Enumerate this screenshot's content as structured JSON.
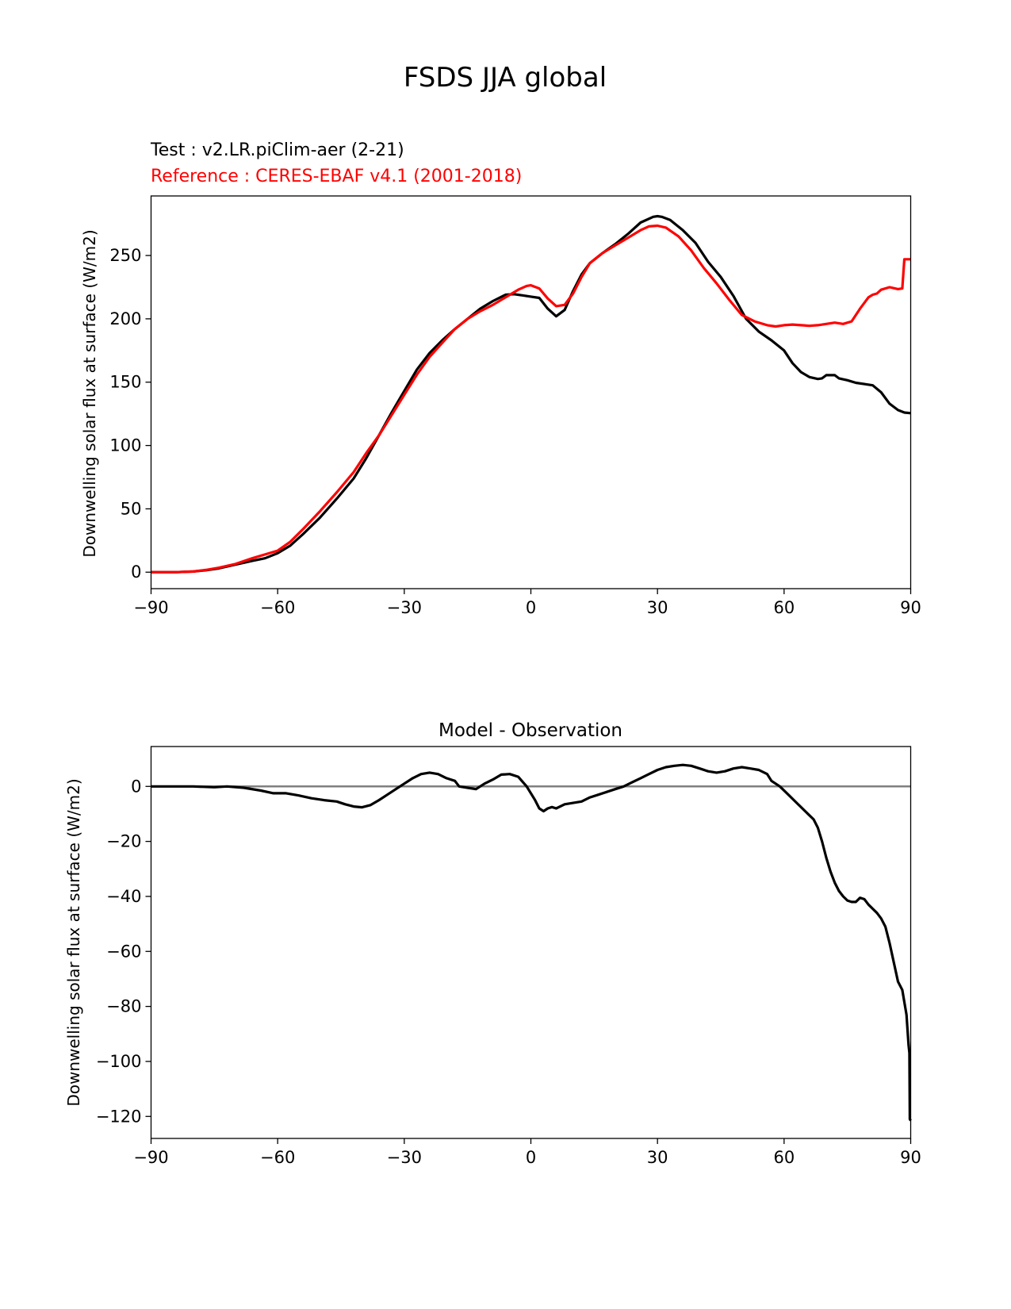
{
  "figure": {
    "suptitle": "FSDS JJA global"
  },
  "chart_data": [
    {
      "type": "line",
      "test_label": "Test : v2.LR.piClim-aer (2-21)",
      "reference_label": "Reference : CERES-EBAF v4.1 (2001-2018)",
      "ylabel": "Downwelling solar flux at surface (W/m2)",
      "xlabel": "",
      "xlim": [
        -90,
        90
      ],
      "ylim": [
        -13,
        297
      ],
      "xticks": [
        -90,
        -60,
        -30,
        0,
        30,
        60,
        90
      ],
      "xtick_labels": [
        "−90",
        "−60",
        "−30",
        "0",
        "30",
        "60",
        "90"
      ],
      "yticks": [
        0,
        50,
        100,
        150,
        200,
        250
      ],
      "ytick_labels": [
        "0",
        "50",
        "100",
        "150",
        "200",
        "250"
      ],
      "grid": false,
      "series": [
        {
          "color": "#000000",
          "points": [
            [
              -90,
              0
            ],
            [
              -84,
              0
            ],
            [
              -80,
              0.5
            ],
            [
              -77,
              1.5
            ],
            [
              -74,
              3
            ],
            [
              -70,
              6
            ],
            [
              -66,
              9
            ],
            [
              -63,
              11
            ],
            [
              -60,
              15
            ],
            [
              -57,
              21
            ],
            [
              -54,
              30
            ],
            [
              -50,
              43
            ],
            [
              -46,
              58
            ],
            [
              -42,
              74
            ],
            [
              -39,
              90
            ],
            [
              -36,
              108
            ],
            [
              -33,
              126
            ],
            [
              -30,
              143
            ],
            [
              -27,
              160
            ],
            [
              -24,
              173
            ],
            [
              -21,
              183
            ],
            [
              -18,
              192
            ],
            [
              -15,
              200
            ],
            [
              -12,
              208
            ],
            [
              -9,
              214
            ],
            [
              -6,
              219
            ],
            [
              -4,
              219.5
            ],
            [
              -2,
              218.5
            ],
            [
              0,
              217.5
            ],
            [
              2,
              216.5
            ],
            [
              4,
              208
            ],
            [
              6,
              202
            ],
            [
              8,
              207
            ],
            [
              10,
              222
            ],
            [
              12,
              235
            ],
            [
              14,
              244
            ],
            [
              17,
              252
            ],
            [
              20,
              259
            ],
            [
              23,
              267
            ],
            [
              26,
              276
            ],
            [
              29,
              280.5
            ],
            [
              30,
              281
            ],
            [
              31,
              280.5
            ],
            [
              33,
              278
            ],
            [
              36,
              270
            ],
            [
              39,
              260
            ],
            [
              42,
              245
            ],
            [
              45,
              233
            ],
            [
              48,
              218
            ],
            [
              51,
              200
            ],
            [
              54,
              190
            ],
            [
              57,
              183
            ],
            [
              60,
              175
            ],
            [
              62,
              165
            ],
            [
              64,
              158
            ],
            [
              66,
              154
            ],
            [
              68,
              152.5
            ],
            [
              69,
              153
            ],
            [
              70,
              155.5
            ],
            [
              72,
              155.5
            ],
            [
              73,
              153
            ],
            [
              75,
              151.5
            ],
            [
              77,
              149.5
            ],
            [
              79,
              148.5
            ],
            [
              81,
              147.5
            ],
            [
              83,
              142
            ],
            [
              85,
              133
            ],
            [
              87,
              128
            ],
            [
              88.5,
              126
            ],
            [
              90,
              125.5
            ]
          ]
        },
        {
          "color": "#ff0000",
          "points": [
            [
              -90,
              0
            ],
            [
              -84,
              0
            ],
            [
              -80,
              0.5
            ],
            [
              -77,
              1.8
            ],
            [
              -74,
              3.5
            ],
            [
              -70,
              6.5
            ],
            [
              -66,
              11
            ],
            [
              -63,
              14
            ],
            [
              -60,
              17
            ],
            [
              -57,
              24
            ],
            [
              -54,
              34
            ],
            [
              -50,
              48
            ],
            [
              -46,
              63
            ],
            [
              -42,
              79
            ],
            [
              -39,
              94
            ],
            [
              -36,
              108
            ],
            [
              -33,
              124
            ],
            [
              -30,
              140
            ],
            [
              -27,
              156
            ],
            [
              -24,
              170
            ],
            [
              -21,
              181
            ],
            [
              -18,
              192
            ],
            [
              -15,
              200
            ],
            [
              -12,
              206
            ],
            [
              -9,
              211
            ],
            [
              -6,
              217
            ],
            [
              -3,
              223
            ],
            [
              -1,
              226
            ],
            [
              0,
              226.5
            ],
            [
              2,
              224
            ],
            [
              4,
              216
            ],
            [
              6,
              210
            ],
            [
              8,
              211
            ],
            [
              10,
              220
            ],
            [
              12,
              233
            ],
            [
              14,
              244
            ],
            [
              17,
              252
            ],
            [
              20,
              258
            ],
            [
              23,
              264
            ],
            [
              26,
              270
            ],
            [
              28,
              273
            ],
            [
              30,
              273.5
            ],
            [
              32,
              272
            ],
            [
              35,
              265
            ],
            [
              38,
              254
            ],
            [
              41,
              240
            ],
            [
              44,
              228
            ],
            [
              47,
              215
            ],
            [
              50,
              203
            ],
            [
              53,
              198
            ],
            [
              56,
              195
            ],
            [
              58,
              194
            ],
            [
              60,
              195
            ],
            [
              62,
              195.5
            ],
            [
              64,
              195
            ],
            [
              66,
              194.5
            ],
            [
              68,
              195
            ],
            [
              70,
              196
            ],
            [
              72,
              197
            ],
            [
              74,
              196
            ],
            [
              76,
              198
            ],
            [
              78,
              208
            ],
            [
              80,
              217
            ],
            [
              81,
              219
            ],
            [
              82,
              220
            ],
            [
              83,
              223
            ],
            [
              85,
              225
            ],
            [
              87,
              223.5
            ],
            [
              88,
              224
            ],
            [
              88.5,
              247
            ],
            [
              90,
              247
            ]
          ]
        }
      ]
    },
    {
      "type": "line",
      "title": "Model - Observation",
      "ylabel": "Downwelling solar flux at surface (W/m2)",
      "xlabel": "",
      "xlim": [
        -90,
        90
      ],
      "ylim": [
        -128,
        14.5
      ],
      "xticks": [
        -90,
        -60,
        -30,
        0,
        30,
        60,
        90
      ],
      "xtick_labels": [
        "−90",
        "−60",
        "−30",
        "0",
        "30",
        "60",
        "90"
      ],
      "yticks": [
        0,
        -20,
        -40,
        -60,
        -80,
        -100,
        -120
      ],
      "ytick_labels": [
        "0",
        "−20",
        "−40",
        "−60",
        "−80",
        "−100",
        "−120"
      ],
      "grid": false,
      "zero_line_color": "#808080",
      "series": [
        {
          "color": "#000000",
          "points": [
            [
              -90,
              0
            ],
            [
              -80,
              0
            ],
            [
              -75,
              -0.3
            ],
            [
              -72,
              0
            ],
            [
              -68,
              -0.5
            ],
            [
              -64,
              -1.5
            ],
            [
              -61,
              -2.5
            ],
            [
              -58,
              -2.5
            ],
            [
              -55,
              -3.3
            ],
            [
              -52,
              -4.3
            ],
            [
              -49,
              -5
            ],
            [
              -46,
              -5.5
            ],
            [
              -44,
              -6.5
            ],
            [
              -42,
              -7.3
            ],
            [
              -40,
              -7.6
            ],
            [
              -38,
              -6.8
            ],
            [
              -36,
              -5
            ],
            [
              -34,
              -3
            ],
            [
              -32,
              -1
            ],
            [
              -30,
              1
            ],
            [
              -28,
              3
            ],
            [
              -26,
              4.5
            ],
            [
              -24,
              5
            ],
            [
              -22,
              4.5
            ],
            [
              -20,
              3
            ],
            [
              -18,
              2
            ],
            [
              -17,
              0
            ],
            [
              -15,
              -0.5
            ],
            [
              -13,
              -1
            ],
            [
              -11,
              1
            ],
            [
              -9,
              2.5
            ],
            [
              -7,
              4.3
            ],
            [
              -5,
              4.5
            ],
            [
              -3,
              3.5
            ],
            [
              -1,
              0
            ],
            [
              1,
              -5
            ],
            [
              2,
              -8
            ],
            [
              3,
              -9
            ],
            [
              4,
              -8
            ],
            [
              5,
              -7.5
            ],
            [
              6,
              -8
            ],
            [
              8,
              -6.5
            ],
            [
              10,
              -6
            ],
            [
              12,
              -5.5
            ],
            [
              14,
              -4
            ],
            [
              16,
              -3
            ],
            [
              18,
              -2
            ],
            [
              20,
              -1
            ],
            [
              22,
              0
            ],
            [
              24,
              1.5
            ],
            [
              26,
              3
            ],
            [
              28,
              4.5
            ],
            [
              30,
              6
            ],
            [
              32,
              7
            ],
            [
              34,
              7.5
            ],
            [
              36,
              7.8
            ],
            [
              38,
              7.5
            ],
            [
              40,
              6.5
            ],
            [
              42,
              5.5
            ],
            [
              44,
              5
            ],
            [
              46,
              5.5
            ],
            [
              48,
              6.5
            ],
            [
              50,
              7
            ],
            [
              52,
              6.5
            ],
            [
              54,
              6
            ],
            [
              56,
              4.5
            ],
            [
              57,
              2
            ],
            [
              59,
              0
            ],
            [
              61,
              -3
            ],
            [
              63,
              -6
            ],
            [
              65,
              -9
            ],
            [
              67,
              -12
            ],
            [
              68,
              -15
            ],
            [
              69,
              -20
            ],
            [
              70,
              -26
            ],
            [
              71,
              -31
            ],
            [
              72,
              -35
            ],
            [
              73,
              -38
            ],
            [
              74,
              -40
            ],
            [
              75,
              -41.5
            ],
            [
              76,
              -42
            ],
            [
              77,
              -42
            ],
            [
              78,
              -40.5
            ],
            [
              79,
              -41
            ],
            [
              80,
              -43
            ],
            [
              81,
              -44.5
            ],
            [
              82,
              -46
            ],
            [
              83,
              -48
            ],
            [
              84,
              -51
            ],
            [
              85,
              -57
            ],
            [
              86,
              -64
            ],
            [
              87,
              -71
            ],
            [
              88,
              -74
            ],
            [
              89,
              -83
            ],
            [
              89.5,
              -94
            ],
            [
              89.7,
              -97
            ],
            [
              89.8,
              -121
            ],
            [
              90,
              -121.5
            ]
          ]
        }
      ]
    }
  ]
}
